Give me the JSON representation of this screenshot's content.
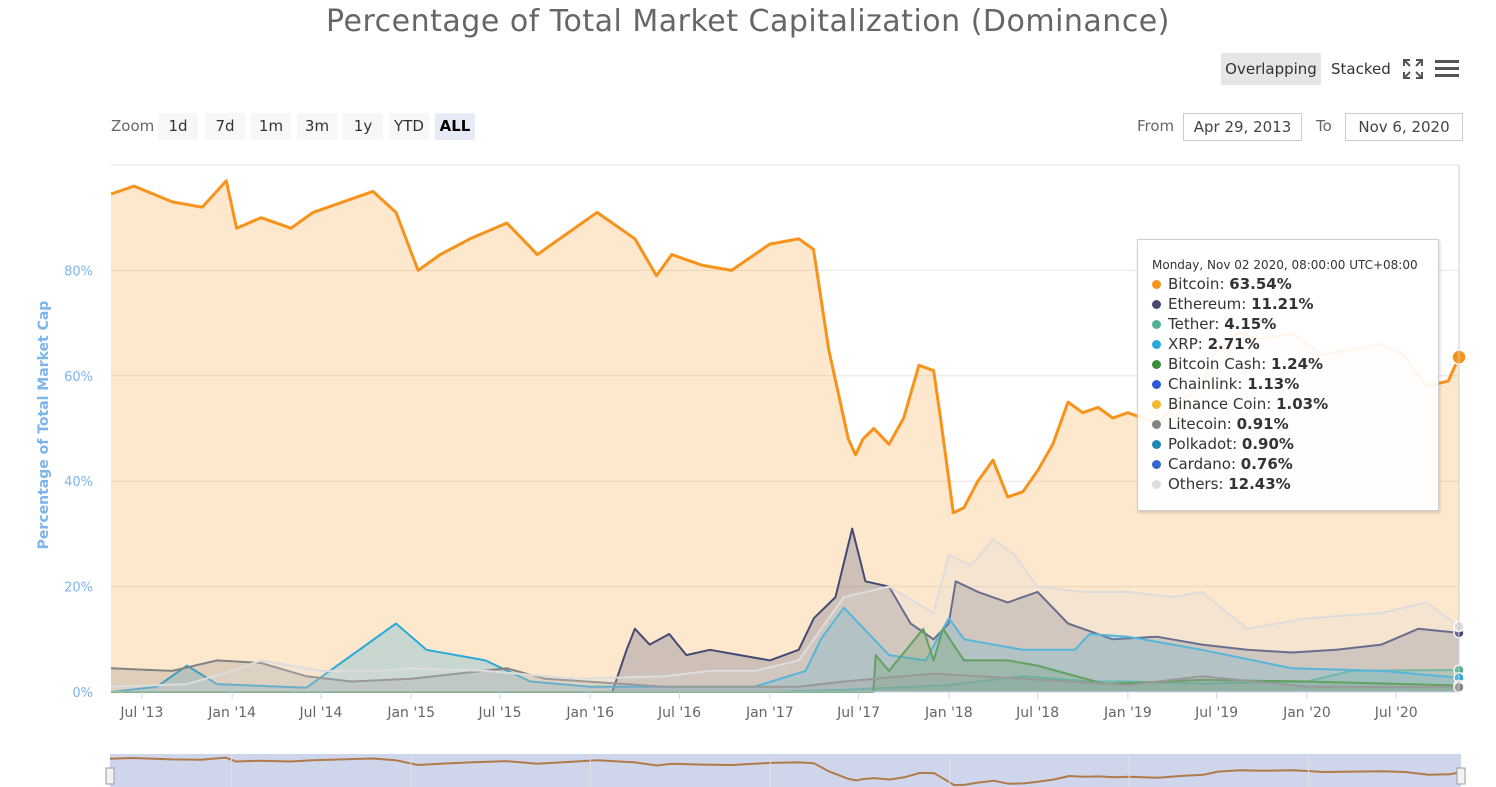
{
  "title": "Percentage of Total Market Capitalization (Dominance)",
  "toolbar": {
    "overlapping_label": "Overlapping",
    "stacked_label": "Stacked",
    "fullscreen_icon": "fullscreen-icon",
    "menu_icon": "hamburger-menu-icon"
  },
  "zoom": {
    "label": "Zoom",
    "buttons": [
      "1d",
      "7d",
      "1m",
      "3m",
      "1y",
      "YTD",
      "ALL"
    ],
    "selected": "ALL"
  },
  "range": {
    "from_label": "From",
    "from_value": "Apr 29, 2013",
    "to_label": "To",
    "to_value": "Nov 6, 2020"
  },
  "tooltip": {
    "header": "Monday, Nov 02 2020, 08:00:00 UTC+08:00",
    "items": [
      {
        "name": "Bitcoin",
        "value": "63.54%",
        "color": "#f7931a"
      },
      {
        "name": "Ethereum",
        "value": "11.21%",
        "color": "#454a75"
      },
      {
        "name": "Tether",
        "value": "4.15%",
        "color": "#50af95"
      },
      {
        "name": "XRP",
        "value": "2.71%",
        "color": "#2aa9d9"
      },
      {
        "name": "Bitcoin Cash",
        "value": "1.24%",
        "color": "#3d8d36"
      },
      {
        "name": "Chainlink",
        "value": "1.13%",
        "color": "#2a5ada"
      },
      {
        "name": "Binance Coin",
        "value": "1.03%",
        "color": "#f3ba2f"
      },
      {
        "name": "Litecoin",
        "value": "0.91%",
        "color": "#838383"
      },
      {
        "name": "Polkadot",
        "value": "0.90%",
        "color": "#1e88b5"
      },
      {
        "name": "Cardano",
        "value": "0.76%",
        "color": "#3468d1"
      },
      {
        "name": "Others",
        "value": "12.43%",
        "color": "#dddddd"
      }
    ]
  },
  "chart_data": {
    "type": "area",
    "ylabel": "Percentage of Total Market Cap",
    "ylim": [
      0,
      100
    ],
    "yticks": [
      "0%",
      "20%",
      "40%",
      "60%",
      "80%"
    ],
    "ytick_values": [
      0,
      20,
      40,
      60,
      80
    ],
    "xlim": [
      "2013-04-29",
      "2020-11-06"
    ],
    "xticks": [
      {
        "label": "Jul '13",
        "date": "2013-07-01"
      },
      {
        "label": "Jan '14",
        "date": "2014-01-01"
      },
      {
        "label": "Jul '14",
        "date": "2014-07-01"
      },
      {
        "label": "Jan '15",
        "date": "2015-01-01"
      },
      {
        "label": "Jul '15",
        "date": "2015-07-01"
      },
      {
        "label": "Jan '16",
        "date": "2016-01-01"
      },
      {
        "label": "Jul '16",
        "date": "2016-07-01"
      },
      {
        "label": "Jan '17",
        "date": "2017-01-01"
      },
      {
        "label": "Jul '17",
        "date": "2017-07-01"
      },
      {
        "label": "Jan '18",
        "date": "2018-01-01"
      },
      {
        "label": "Jul '18",
        "date": "2018-07-01"
      },
      {
        "label": "Jan '19",
        "date": "2019-01-01"
      },
      {
        "label": "Jul '19",
        "date": "2019-07-01"
      },
      {
        "label": "Jan '20",
        "date": "2020-01-01"
      },
      {
        "label": "Jul '20",
        "date": "2020-07-01"
      }
    ],
    "grid": true,
    "series": [
      {
        "name": "Bitcoin",
        "color": "#f7931a",
        "points": [
          [
            "2013-04-29",
            94.5
          ],
          [
            "2013-06-15",
            96
          ],
          [
            "2013-09-01",
            93
          ],
          [
            "2013-11-01",
            92
          ],
          [
            "2013-12-20",
            97
          ],
          [
            "2014-01-10",
            88
          ],
          [
            "2014-03-01",
            90
          ],
          [
            "2014-05-01",
            88
          ],
          [
            "2014-06-15",
            91
          ],
          [
            "2014-08-15",
            93
          ],
          [
            "2014-10-15",
            95
          ],
          [
            "2014-12-01",
            91
          ],
          [
            "2015-01-15",
            80
          ],
          [
            "2015-03-01",
            83
          ],
          [
            "2015-05-01",
            86
          ],
          [
            "2015-07-15",
            89
          ],
          [
            "2015-09-15",
            83
          ],
          [
            "2015-11-15",
            87
          ],
          [
            "2016-01-15",
            91
          ],
          [
            "2016-04-01",
            86
          ],
          [
            "2016-05-15",
            79
          ],
          [
            "2016-06-15",
            83
          ],
          [
            "2016-08-15",
            81
          ],
          [
            "2016-10-15",
            80
          ],
          [
            "2017-01-01",
            85
          ],
          [
            "2017-03-01",
            86
          ],
          [
            "2017-03-31",
            84
          ],
          [
            "2017-05-01",
            65
          ],
          [
            "2017-06-10",
            48
          ],
          [
            "2017-06-25",
            45
          ],
          [
            "2017-07-10",
            48
          ],
          [
            "2017-08-01",
            50
          ],
          [
            "2017-09-01",
            47
          ],
          [
            "2017-10-01",
            52
          ],
          [
            "2017-11-01",
            62
          ],
          [
            "2017-12-01",
            61
          ],
          [
            "2017-12-15",
            52
          ],
          [
            "2018-01-10",
            34
          ],
          [
            "2018-02-01",
            35
          ],
          [
            "2018-03-01",
            40
          ],
          [
            "2018-04-01",
            44
          ],
          [
            "2018-05-01",
            37
          ],
          [
            "2018-06-01",
            38
          ],
          [
            "2018-07-01",
            42
          ],
          [
            "2018-08-01",
            47
          ],
          [
            "2018-09-01",
            55
          ],
          [
            "2018-10-01",
            53
          ],
          [
            "2018-11-01",
            54
          ],
          [
            "2018-12-01",
            52
          ],
          [
            "2019-01-01",
            53
          ],
          [
            "2019-03-01",
            51
          ],
          [
            "2019-04-15",
            55
          ],
          [
            "2019-06-01",
            58
          ],
          [
            "2019-07-01",
            65
          ],
          [
            "2019-08-15",
            68
          ],
          [
            "2019-10-01",
            67
          ],
          [
            "2019-12-01",
            68
          ],
          [
            "2020-02-01",
            64
          ],
          [
            "2020-04-01",
            65
          ],
          [
            "2020-06-01",
            66
          ],
          [
            "2020-07-15",
            64
          ],
          [
            "2020-09-01",
            58
          ],
          [
            "2020-10-15",
            59
          ],
          [
            "2020-11-06",
            63.54
          ]
        ]
      },
      {
        "name": "Ethereum",
        "color": "#454a75",
        "points": [
          [
            "2013-04-29",
            0
          ],
          [
            "2016-02-15",
            0
          ],
          [
            "2016-03-15",
            8
          ],
          [
            "2016-04-01",
            12
          ],
          [
            "2016-05-01",
            9
          ],
          [
            "2016-06-10",
            11
          ],
          [
            "2016-07-15",
            7
          ],
          [
            "2016-09-01",
            8
          ],
          [
            "2016-11-01",
            7
          ],
          [
            "2017-01-01",
            6
          ],
          [
            "2017-03-01",
            8
          ],
          [
            "2017-04-01",
            14
          ],
          [
            "2017-05-15",
            18
          ],
          [
            "2017-06-18",
            31
          ],
          [
            "2017-07-15",
            21
          ],
          [
            "2017-09-01",
            20
          ],
          [
            "2017-10-15",
            13
          ],
          [
            "2017-12-01",
            10
          ],
          [
            "2018-01-01",
            13
          ],
          [
            "2018-01-15",
            21
          ],
          [
            "2018-03-01",
            19
          ],
          [
            "2018-05-01",
            17
          ],
          [
            "2018-07-01",
            19
          ],
          [
            "2018-09-01",
            13
          ],
          [
            "2018-12-01",
            10
          ],
          [
            "2019-03-01",
            10.5
          ],
          [
            "2019-06-01",
            9
          ],
          [
            "2019-09-01",
            8
          ],
          [
            "2019-12-01",
            7.5
          ],
          [
            "2020-03-01",
            8
          ],
          [
            "2020-06-01",
            9
          ],
          [
            "2020-08-15",
            12
          ],
          [
            "2020-11-06",
            11.21
          ]
        ]
      },
      {
        "name": "Tether",
        "color": "#50af95",
        "points": [
          [
            "2013-04-29",
            0
          ],
          [
            "2017-01-01",
            0
          ],
          [
            "2017-06-01",
            0.4
          ],
          [
            "2018-01-01",
            1.3
          ],
          [
            "2018-06-01",
            3
          ],
          [
            "2018-10-15",
            2
          ],
          [
            "2019-01-01",
            2
          ],
          [
            "2019-06-01",
            1.6
          ],
          [
            "2020-01-01",
            2
          ],
          [
            "2020-04-01",
            4
          ],
          [
            "2020-07-01",
            4.1
          ],
          [
            "2020-11-06",
            4.15
          ]
        ]
      },
      {
        "name": "XRP",
        "color": "#2aa9d9",
        "points": [
          [
            "2013-04-29",
            0
          ],
          [
            "2013-08-01",
            1
          ],
          [
            "2013-10-01",
            5
          ],
          [
            "2013-12-01",
            1.5
          ],
          [
            "2014-06-01",
            0.8
          ],
          [
            "2014-12-01",
            13
          ],
          [
            "2015-02-01",
            8
          ],
          [
            "2015-06-01",
            6
          ],
          [
            "2015-09-01",
            2
          ],
          [
            "2016-01-01",
            1
          ],
          [
            "2016-06-01",
            1
          ],
          [
            "2016-12-01",
            1
          ],
          [
            "2017-03-15",
            4
          ],
          [
            "2017-04-15",
            10
          ],
          [
            "2017-06-01",
            16
          ],
          [
            "2017-09-01",
            7
          ],
          [
            "2017-11-15",
            6
          ],
          [
            "2018-01-01",
            14
          ],
          [
            "2018-02-01",
            10
          ],
          [
            "2018-06-01",
            8
          ],
          [
            "2018-09-15",
            8
          ],
          [
            "2018-10-15",
            11
          ],
          [
            "2019-01-01",
            10.5
          ],
          [
            "2019-06-01",
            8
          ],
          [
            "2019-12-01",
            4.5
          ],
          [
            "2020-06-01",
            4
          ],
          [
            "2020-11-06",
            2.71
          ]
        ]
      },
      {
        "name": "Bitcoin Cash",
        "color": "#3d8d36",
        "points": [
          [
            "2013-04-29",
            0
          ],
          [
            "2017-07-31",
            0
          ],
          [
            "2017-08-05",
            7
          ],
          [
            "2017-09-01",
            4
          ],
          [
            "2017-11-10",
            12
          ],
          [
            "2017-12-01",
            6
          ],
          [
            "2017-12-20",
            12
          ],
          [
            "2018-02-01",
            6
          ],
          [
            "2018-05-01",
            6
          ],
          [
            "2018-07-01",
            5
          ],
          [
            "2018-11-15",
            1.5
          ],
          [
            "2019-06-01",
            2.3
          ],
          [
            "2020-01-01",
            2
          ],
          [
            "2020-11-06",
            1.24
          ]
        ]
      },
      {
        "name": "Litecoin",
        "color": "#838383",
        "points": [
          [
            "2013-04-29",
            4.5
          ],
          [
            "2013-09-01",
            4
          ],
          [
            "2013-12-01",
            6
          ],
          [
            "2014-03-01",
            5.5
          ],
          [
            "2014-06-01",
            3
          ],
          [
            "2014-09-01",
            2
          ],
          [
            "2015-01-01",
            2.5
          ],
          [
            "2015-07-15",
            4.5
          ],
          [
            "2015-10-01",
            2.5
          ],
          [
            "2016-06-01",
            1
          ],
          [
            "2017-03-01",
            1
          ],
          [
            "2017-06-01",
            2
          ],
          [
            "2017-12-01",
            3.5
          ],
          [
            "2018-06-01",
            2.5
          ],
          [
            "2019-01-01",
            1.3
          ],
          [
            "2019-06-01",
            3
          ],
          [
            "2020-01-01",
            1
          ],
          [
            "2020-11-06",
            0.91
          ]
        ]
      },
      {
        "name": "Others",
        "color": "#dddddd",
        "points": [
          [
            "2013-04-29",
            1
          ],
          [
            "2013-10-01",
            1.5
          ],
          [
            "2014-01-01",
            4
          ],
          [
            "2014-03-01",
            6
          ],
          [
            "2014-07-01",
            4
          ],
          [
            "2014-11-01",
            4
          ],
          [
            "2015-01-01",
            4.5
          ],
          [
            "2015-06-01",
            4
          ],
          [
            "2015-12-01",
            2.5
          ],
          [
            "2016-06-01",
            3
          ],
          [
            "2016-09-01",
            4
          ],
          [
            "2016-12-01",
            4
          ],
          [
            "2017-03-01",
            6
          ],
          [
            "2017-06-01",
            18
          ],
          [
            "2017-09-01",
            20
          ],
          [
            "2017-12-01",
            15
          ],
          [
            "2018-01-01",
            26
          ],
          [
            "2018-02-15",
            24
          ],
          [
            "2018-04-01",
            29
          ],
          [
            "2018-05-15",
            26
          ],
          [
            "2018-07-01",
            20
          ],
          [
            "2018-10-01",
            19
          ],
          [
            "2019-01-01",
            19
          ],
          [
            "2019-04-01",
            18
          ],
          [
            "2019-06-01",
            19
          ],
          [
            "2019-09-01",
            12
          ],
          [
            "2020-01-01",
            14
          ],
          [
            "2020-06-01",
            15
          ],
          [
            "2020-09-01",
            17
          ],
          [
            "2020-11-06",
            12.43
          ]
        ]
      }
    ],
    "navigator": {
      "series": "Bitcoin"
    }
  }
}
